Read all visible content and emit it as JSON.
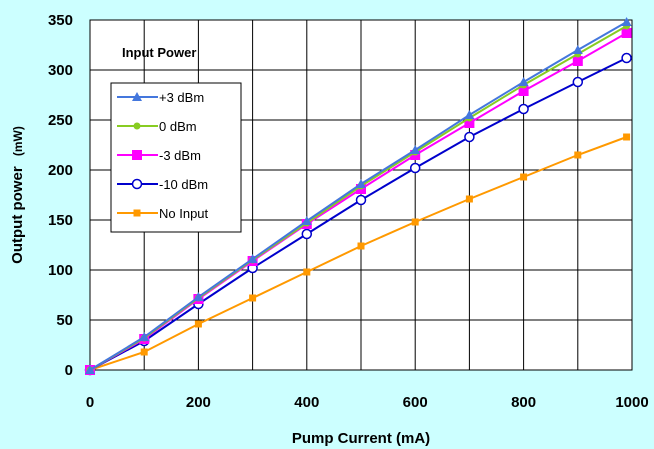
{
  "chart_data": {
    "type": "line",
    "xlabel": "Pump Current (mA)",
    "ylabel_main": "Output power",
    "ylabel_unit": "(mW)",
    "xlim": [
      0,
      1000
    ],
    "ylim": [
      0,
      350
    ],
    "xticks": [
      0,
      200,
      400,
      600,
      800,
      1000
    ],
    "yticks": [
      0,
      50,
      100,
      150,
      200,
      250,
      300,
      350
    ],
    "grid": true,
    "legend_title": "Input Power",
    "legend_position": "top-left",
    "x": [
      0,
      100,
      200,
      300,
      400,
      500,
      600,
      700,
      800,
      900,
      990
    ],
    "series": [
      {
        "name": "+3 dBm",
        "color": "#4477dd",
        "marker": "triangle",
        "values": [
          0,
          33,
          73,
          111,
          149,
          186,
          220,
          255,
          288,
          320,
          348
        ]
      },
      {
        "name": "0 dBm",
        "color": "#88cc22",
        "marker": "circle-filled",
        "values": [
          0,
          32,
          72,
          110,
          147,
          184,
          218,
          252,
          285,
          316,
          344
        ]
      },
      {
        "name": "-3 dBm",
        "color": "#ff00ff",
        "marker": "square",
        "values": [
          0,
          31,
          71,
          109,
          146,
          181,
          215,
          247,
          279,
          309,
          337
        ]
      },
      {
        "name": "-10 dBm",
        "color": "#0000cc",
        "marker": "circle-open",
        "values": [
          0,
          29,
          66,
          102,
          136,
          170,
          202,
          233,
          261,
          288,
          312
        ]
      },
      {
        "name": "No Input",
        "color": "#ff9900",
        "marker": "square-small",
        "values": [
          0,
          18,
          46,
          72,
          98,
          124,
          148,
          171,
          193,
          215,
          233
        ]
      }
    ]
  }
}
